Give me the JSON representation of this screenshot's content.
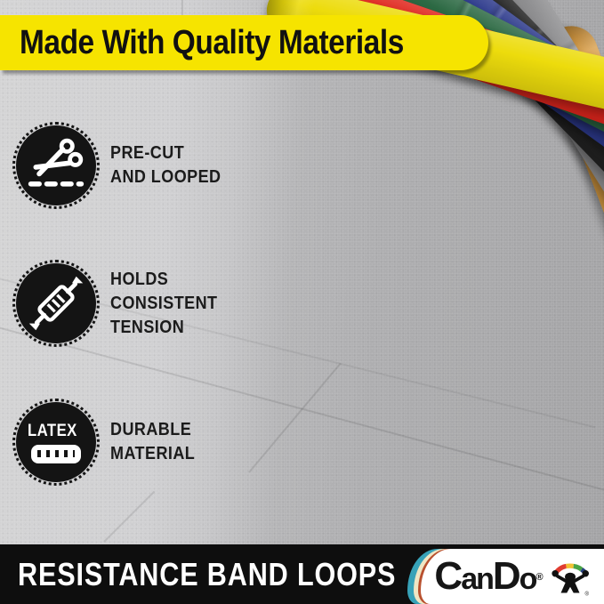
{
  "banner": {
    "label": "Made With Quality Materials",
    "bg_color": "#F6E400"
  },
  "features": [
    {
      "icon": "scissors-precut-icon",
      "lines": [
        "PRE-CUT",
        "AND LOOPED"
      ]
    },
    {
      "icon": "stretch-tension-icon",
      "lines": [
        "HOLDS",
        "CONSISTENT",
        "TENSION"
      ]
    },
    {
      "icon": "latex-band-icon",
      "badge_word": "LATEX",
      "lines": [
        "DURABLE",
        "MATERIAL"
      ]
    }
  ],
  "product": {
    "bands": [
      {
        "name": "yellow",
        "color": "#EDDC0D"
      },
      {
        "name": "red",
        "color": "#E0261D"
      },
      {
        "name": "green",
        "color": "#2D6A44"
      },
      {
        "name": "blue",
        "color": "#2D3A8C"
      },
      {
        "name": "black",
        "color": "#222222"
      },
      {
        "name": "gray",
        "color": "#8F8F91"
      },
      {
        "name": "tan",
        "color": "#D69A42"
      }
    ]
  },
  "footer": {
    "title": "RESISTANCE BAND LOOPS",
    "brand_parts": [
      "C",
      "an",
      "D",
      "o"
    ],
    "registered": "®",
    "mascot_icon": "cando-mascot-icon",
    "bar_color": "#0E0E0E",
    "stripe_colors": [
      "#37A2B8",
      "#EFE6C4",
      "#B8502E"
    ]
  }
}
